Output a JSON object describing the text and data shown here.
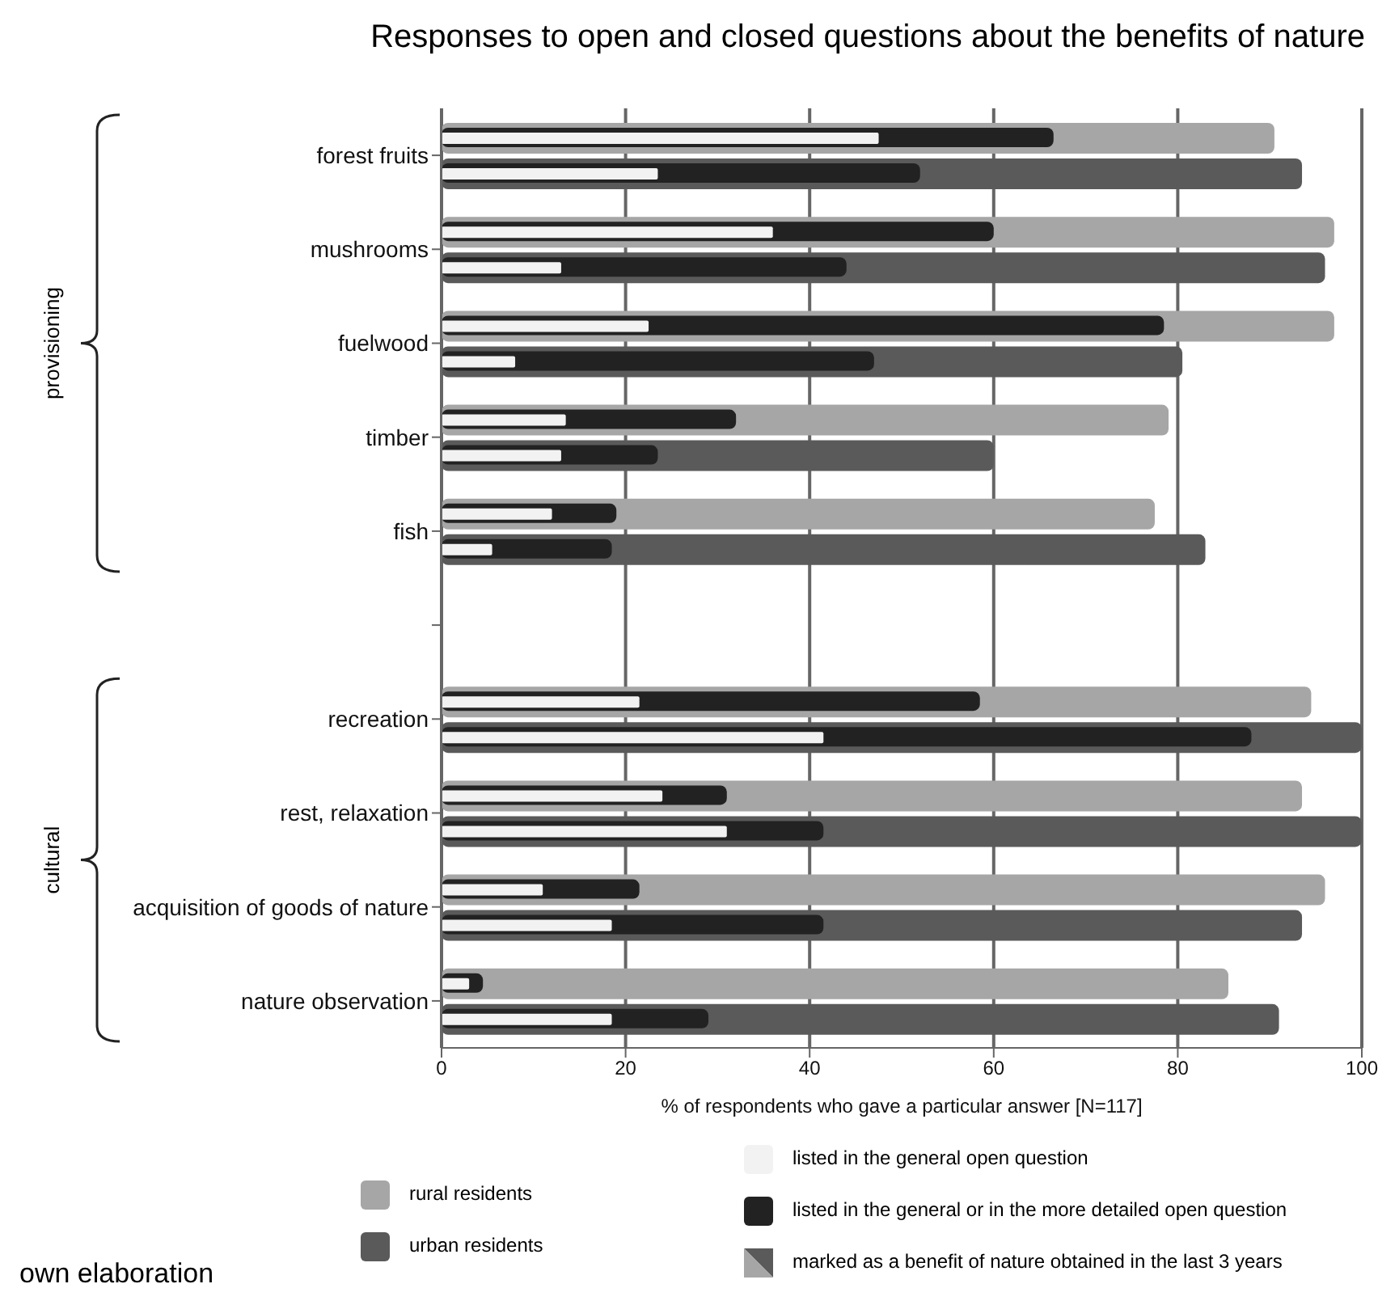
{
  "chart_data": {
    "type": "bar",
    "orientation": "horizontal",
    "title": "Responses to open and closed questions about the benefits of nature",
    "xlabel": "% of respondents who gave a particular answer [N=117]",
    "categories": [
      "forest fruits",
      "mushrooms",
      "fuelwood",
      "timber",
      "fish",
      null,
      "recreation",
      "rest, relaxation",
      "acquisition of goods of nature",
      "nature observation"
    ],
    "series": [
      {
        "name": "rural residents",
        "color": "#a6a6a6",
        "values": [
          90.5,
          97,
          97,
          79,
          77.5,
          null,
          94.5,
          93.5,
          96,
          85.5
        ]
      },
      {
        "name": "urban residents",
        "color": "#5a5a5a",
        "values": [
          93.5,
          96,
          80.5,
          60,
          83,
          null,
          100,
          100,
          93.5,
          91
        ]
      },
      {
        "name": "listed in the general or in the more detailed open question",
        "color": "#222222",
        "values": [
          66.5,
          60,
          78.5,
          32,
          19,
          null,
          58.5,
          31,
          21.5,
          4.5
        ]
      },
      {
        "color": "#222222",
        "values": [
          52,
          44,
          47,
          23.5,
          18.5,
          null,
          88,
          41.5,
          41.5,
          29
        ]
      },
      {
        "name": "listed in the general open question",
        "color": "#f2f2f2",
        "values": [
          47.5,
          36,
          22.5,
          13.5,
          12,
          null,
          21.5,
          24,
          11,
          3
        ]
      },
      {
        "color": "#f2f2f2",
        "values": [
          23.5,
          13,
          8,
          13,
          5.5,
          null,
          41.5,
          31,
          18.5,
          18.5
        ]
      }
    ],
    "xlim": [
      0,
      100
    ],
    "xticks": [
      0,
      20,
      40,
      60,
      80,
      100
    ],
    "grid": "x",
    "legend": "bottom",
    "annotations": [
      "marked as a benefit of nature obtained in the last 3 years",
      "provisioning",
      "cultural",
      "own elaboration"
    ]
  }
}
